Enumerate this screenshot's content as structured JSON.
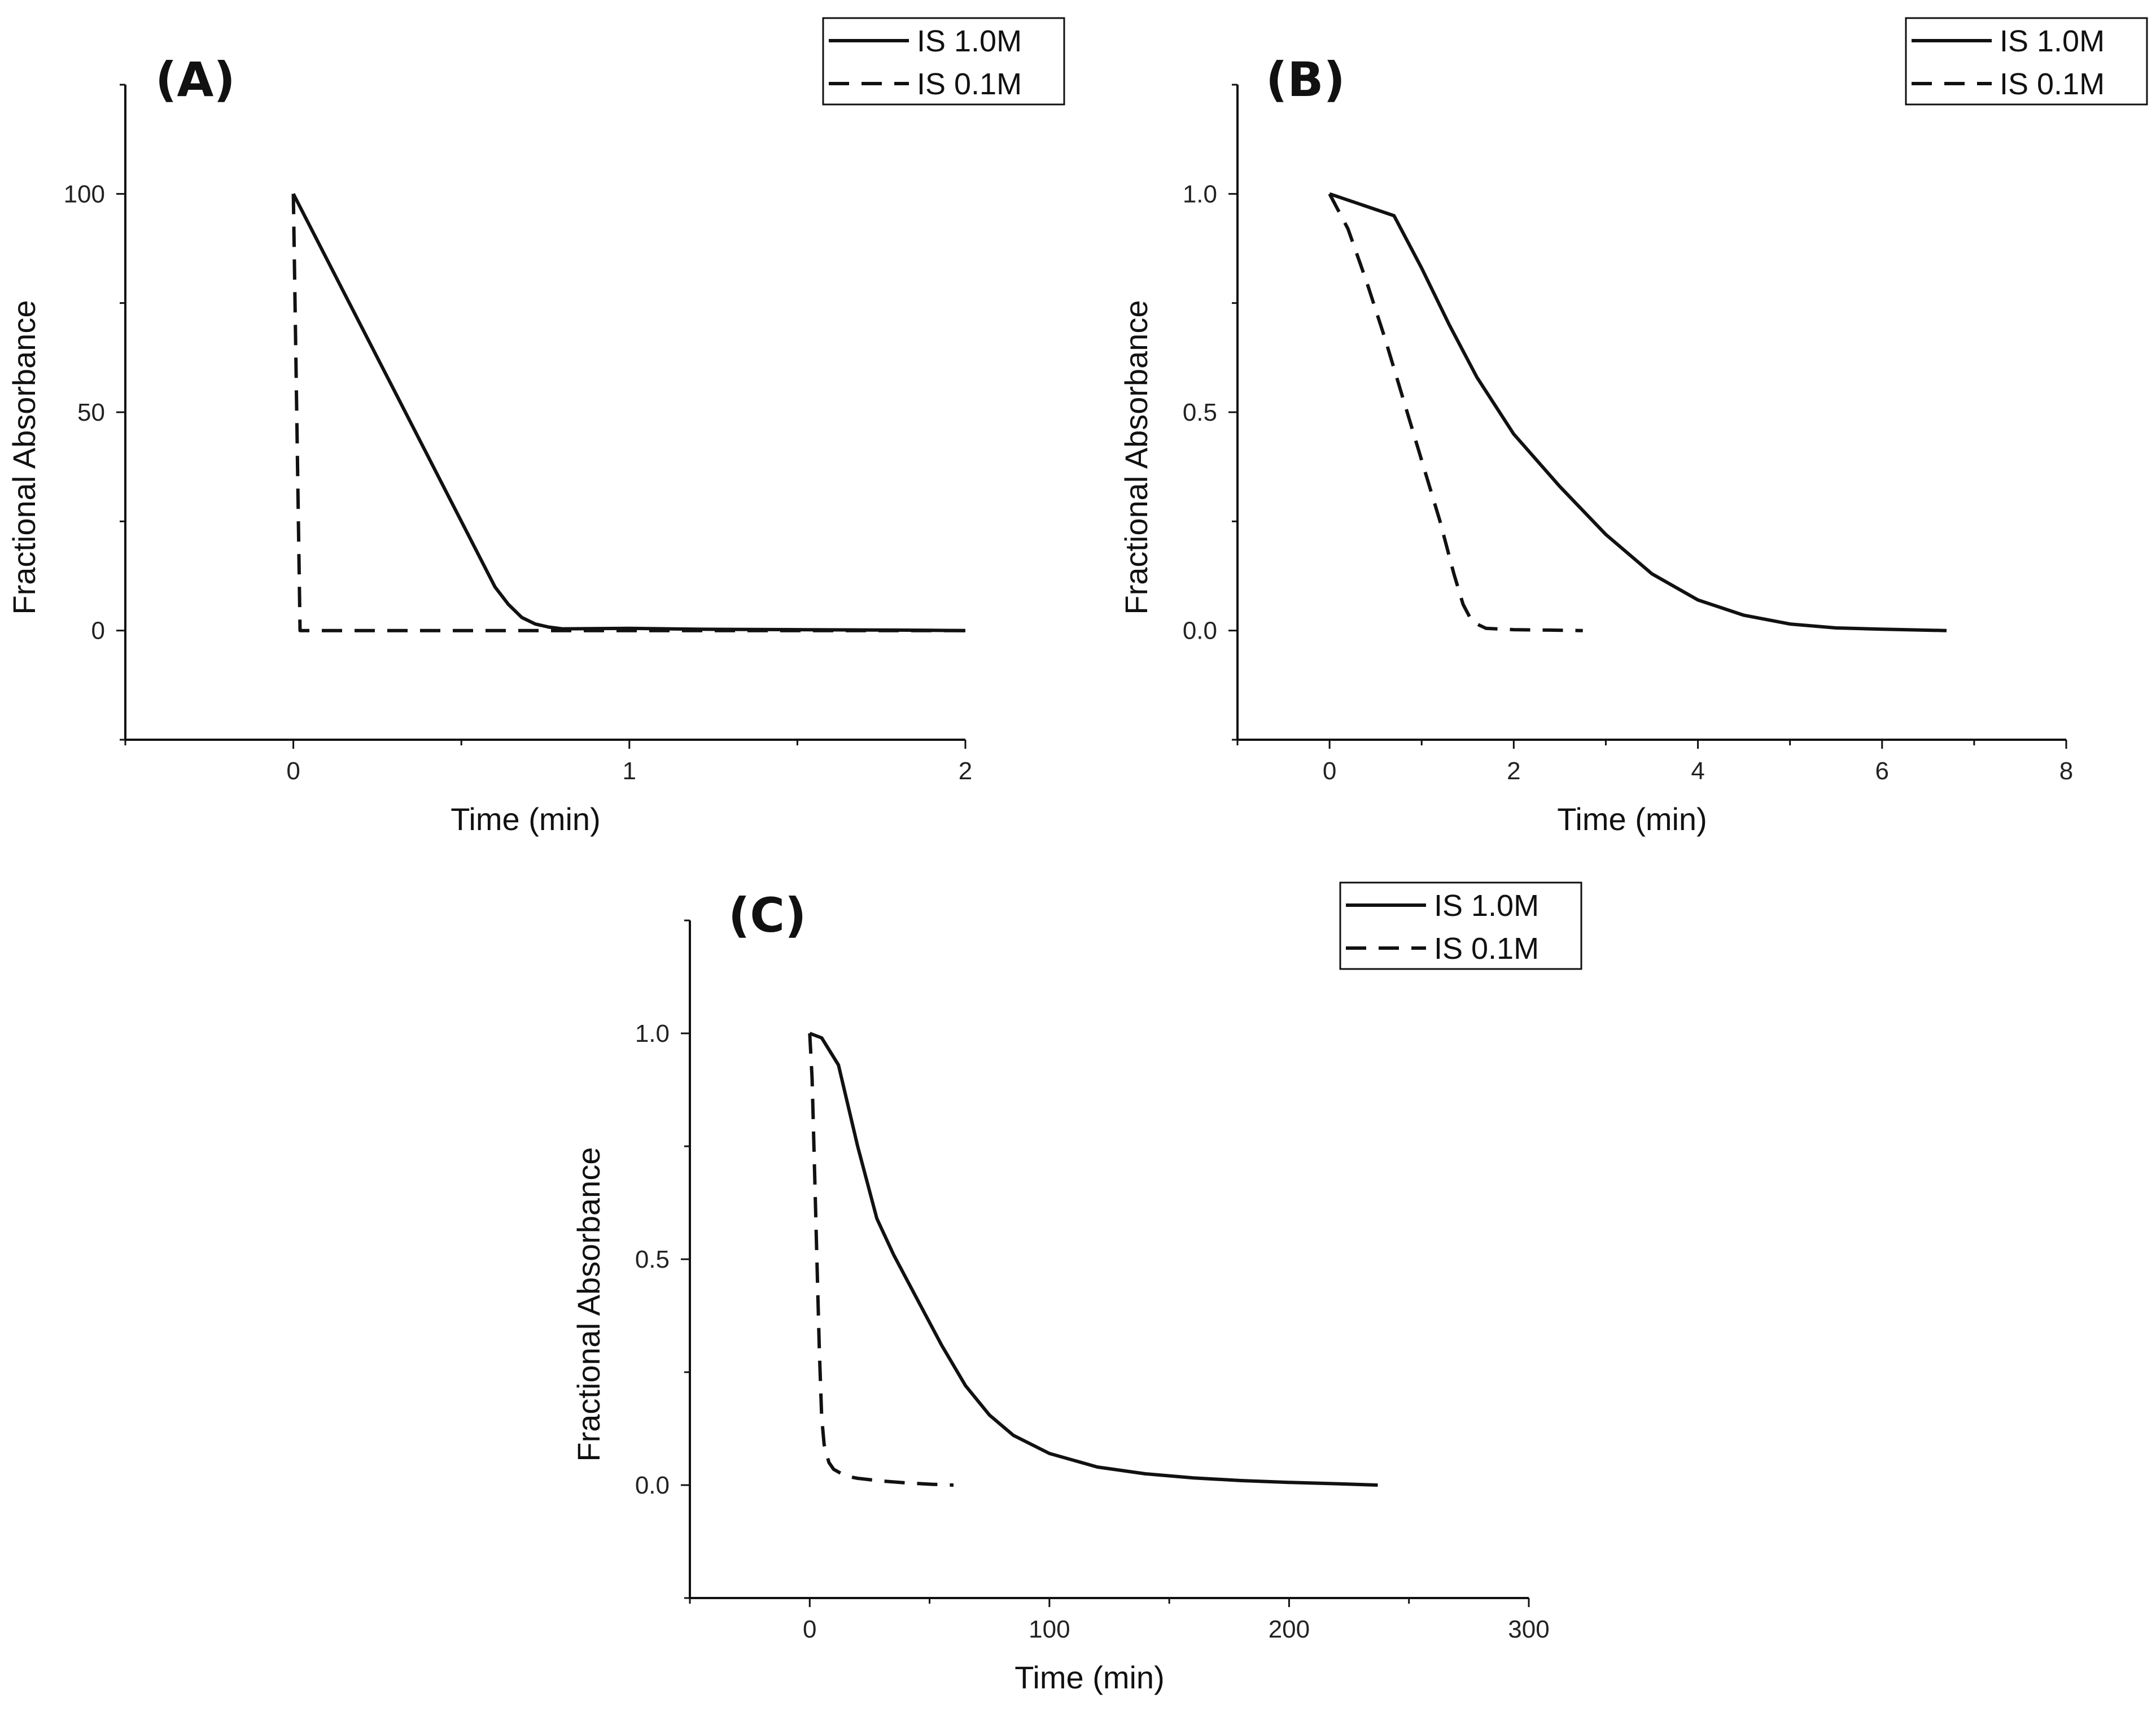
{
  "chart_data": [
    {
      "type": "line",
      "panel_label": "(A)",
      "xlabel": "Time (min)",
      "ylabel": "Fractional Absorbance",
      "xlim": [
        -0.5,
        2
      ],
      "ylim": [
        -25,
        125
      ],
      "xticks": [
        0,
        1,
        2
      ],
      "xtick_labels": [
        "0",
        "1",
        "2"
      ],
      "yticks": [
        0,
        50,
        100
      ],
      "ytick_labels": [
        "0",
        "50",
        "100"
      ],
      "grid": false,
      "legend_position": "top-right",
      "series": [
        {
          "name": "IS 1.0M",
          "style": "solid",
          "x": [
            0,
            0.1,
            0.2,
            0.3,
            0.4,
            0.5,
            0.6,
            0.64,
            0.68,
            0.72,
            0.76,
            0.8,
            1.0,
            1.2,
            1.5,
            1.8,
            2.0
          ],
          "y": [
            100,
            85,
            70,
            55,
            40,
            25,
            10,
            6,
            3,
            1.5,
            0.8,
            0.4,
            0.5,
            0.3,
            0.2,
            0.1,
            0
          ]
        },
        {
          "name": "IS 0.1M",
          "style": "dashed",
          "x": [
            0,
            0.01,
            0.02,
            0.1,
            0.5,
            1.0,
            1.5,
            2.0
          ],
          "y": [
            100,
            50,
            0,
            0,
            0,
            0,
            0,
            0
          ]
        }
      ]
    },
    {
      "type": "line",
      "panel_label": "(B)",
      "xlabel": "Time (min)",
      "ylabel": "Fractional Absorbance",
      "xlim": [
        -1,
        8
      ],
      "ylim": [
        -0.25,
        1.25
      ],
      "xticks": [
        0,
        2,
        4,
        6,
        8
      ],
      "xtick_labels": [
        "0",
        "2",
        "4",
        "6",
        "8"
      ],
      "yticks": [
        0,
        0.5,
        1
      ],
      "ytick_labels": [
        "0.0",
        "0.5",
        "1.0"
      ],
      "grid": false,
      "legend_position": "top-right",
      "series": [
        {
          "name": "IS 1.0M",
          "style": "solid",
          "x": [
            0,
            0.7,
            1.0,
            1.3,
            1.6,
            2.0,
            2.5,
            3.0,
            3.5,
            4.0,
            4.5,
            5.0,
            5.5,
            6.0,
            6.7
          ],
          "y": [
            1.0,
            0.95,
            0.83,
            0.7,
            0.58,
            0.45,
            0.33,
            0.22,
            0.13,
            0.07,
            0.035,
            0.015,
            0.006,
            0.003,
            0
          ]
        },
        {
          "name": "IS 0.1M",
          "style": "dashed",
          "x": [
            0,
            0.2,
            0.4,
            0.6,
            0.8,
            1.0,
            1.2,
            1.35,
            1.45,
            1.55,
            1.7,
            2.0,
            2.4,
            2.75
          ],
          "y": [
            1.0,
            0.92,
            0.8,
            0.67,
            0.53,
            0.39,
            0.25,
            0.13,
            0.06,
            0.02,
            0.005,
            0.002,
            0.001,
            0
          ]
        }
      ]
    },
    {
      "type": "line",
      "panel_label": "(C)",
      "xlabel": "Time (min)",
      "ylabel": "Fractional Absorbance",
      "xlim": [
        -50,
        300
      ],
      "ylim": [
        -0.25,
        1.25
      ],
      "xticks": [
        0,
        100,
        200,
        300
      ],
      "xtick_labels": [
        "0",
        "100",
        "200",
        "300"
      ],
      "yticks": [
        0,
        0.5,
        1
      ],
      "ytick_labels": [
        "0.0",
        "0.5",
        "1.0"
      ],
      "grid": false,
      "legend_position": "top-right",
      "series": [
        {
          "name": "IS 1.0M",
          "style": "solid",
          "x": [
            0,
            5,
            12,
            20,
            28,
            35,
            45,
            55,
            65,
            75,
            85,
            100,
            120,
            140,
            160,
            180,
            200,
            220,
            237
          ],
          "y": [
            1.0,
            0.99,
            0.93,
            0.75,
            0.59,
            0.51,
            0.41,
            0.31,
            0.22,
            0.155,
            0.11,
            0.07,
            0.04,
            0.025,
            0.016,
            0.01,
            0.006,
            0.003,
            0
          ]
        },
        {
          "name": "IS 0.1M",
          "style": "dashed",
          "x": [
            0,
            1,
            2,
            3,
            4,
            5,
            6,
            8,
            10,
            15,
            20,
            30,
            40,
            50,
            60
          ],
          "y": [
            1.0,
            0.9,
            0.7,
            0.5,
            0.3,
            0.15,
            0.09,
            0.05,
            0.035,
            0.02,
            0.015,
            0.009,
            0.005,
            0.002,
            0
          ]
        }
      ]
    }
  ]
}
